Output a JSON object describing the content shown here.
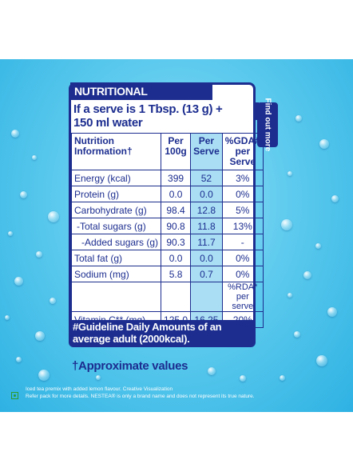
{
  "header": {
    "title": "NUTRITIONAL INFORMATION"
  },
  "serve": {
    "line1": "If a serve is 1 Tbsp. (13 g) +",
    "line2": "150 ml water"
  },
  "side_tab": {
    "label": "Find out more"
  },
  "table": {
    "headers": {
      "col1": "Nutrition Information†",
      "col2": "Per 100g",
      "col3": "Per Serve",
      "col4": "%GDA# per Serve"
    },
    "rows": [
      {
        "name": "Energy (kcal)",
        "per100": "399",
        "serve": "52",
        "gda": "3%"
      },
      {
        "name": "Protein (g)",
        "per100": "0.0",
        "serve": "0.0",
        "gda": "0%"
      },
      {
        "name": "Carbohydrate (g)",
        "per100": "98.4",
        "serve": "12.8",
        "gda": "5%"
      },
      {
        "name": "-Total sugars (g)",
        "per100": "90.8",
        "serve": "11.8",
        "gda": "13%"
      },
      {
        "name": "-Added sugars (g)",
        "per100": "90.3",
        "serve": "11.7",
        "gda": "-"
      },
      {
        "name": "Total fat (g)",
        "per100": "0.0",
        "serve": "0.0",
        "gda": "0%"
      },
      {
        "name": "Sodium (mg)",
        "per100": "5.8",
        "serve": "0.7",
        "gda": "0%"
      }
    ],
    "rda_header": "%RDA* per serve",
    "vitamin": {
      "name": "Vitamin C** (mg)",
      "per100": "125.0",
      "serve": "16.25",
      "rda": "20%"
    }
  },
  "guideline": "#Guideline Daily Amounts of an average adult (2000kcal).",
  "approx": "†Approximate values",
  "footnotes": {
    "line1": "Iced tea premix with added lemon flavour. Creative Visualization",
    "line2": "Refer pack for more details. NESTEA® is only a brand name and does not represent its true nature."
  }
}
